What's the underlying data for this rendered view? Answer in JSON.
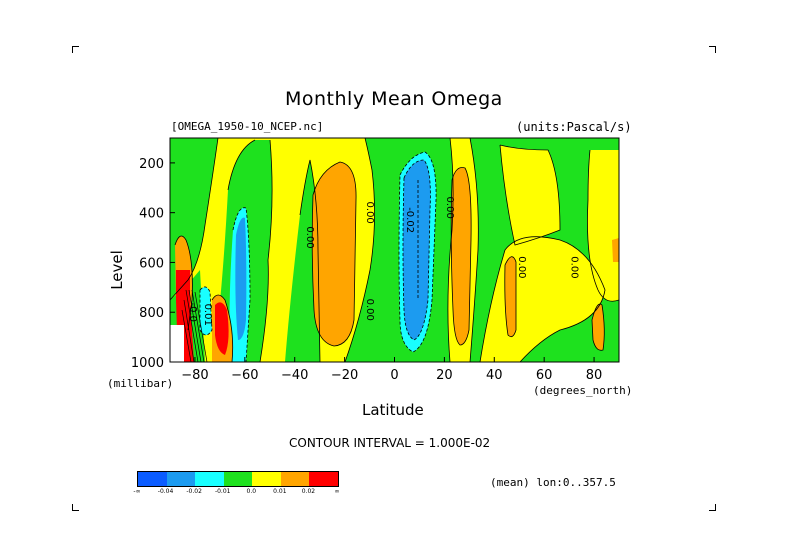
{
  "chart_data": {
    "type": "heatmap",
    "title": "Monthly Mean Omega",
    "source_label": "[OMEGA_1950-10_NCEP.nc]",
    "units_label": "(units:Pascal/s)",
    "xlabel": "Latitude",
    "xunit": "(degrees_north)",
    "ylabel": "Level",
    "yunit": "(millibar)",
    "xlim": [
      -90,
      90
    ],
    "ylim": [
      1000,
      100
    ],
    "xticks": [
      -80,
      -60,
      -40,
      -20,
      0,
      20,
      40,
      60,
      80
    ],
    "yticks": [
      1000,
      800,
      600,
      400,
      200
    ],
    "contour_interval": "CONTOUR INTERVAL = 1.000E-02",
    "mean_note": "(mean) lon:0..357.5",
    "contour_labels": [
      {
        "text": "0.00",
        "lat": -35,
        "lev": 500
      },
      {
        "text": "0.00",
        "lat": -11,
        "lev": 400
      },
      {
        "text": "0.00",
        "lat": -11,
        "lev": 790
      },
      {
        "text": "-0.02",
        "lat": 5,
        "lev": 430
      },
      {
        "text": "0.00",
        "lat": 21,
        "lev": 380
      },
      {
        "text": "0.00",
        "lat": 50,
        "lev": 620
      },
      {
        "text": "0.00",
        "lat": 71,
        "lev": 620
      },
      {
        "text": "0.01",
        "lat": -76,
        "lev": 810
      },
      {
        "text": "-0.0",
        "lat": -82,
        "lev": 800
      }
    ],
    "levels": [
      -0.05,
      -0.04,
      -0.02,
      -0.01,
      0.0,
      0.01,
      0.02,
      0.05
    ],
    "colorbar": {
      "colors": [
        "#0b5cff",
        "#1c9bf0",
        "#19ffff",
        "#1ee11e",
        "#ffff00",
        "#ffa500",
        "#ff0000"
      ],
      "labels": [
        "-∞",
        "-0.04",
        "-0.02",
        "-0.01",
        "0.0",
        "0.01",
        "0.02",
        "∞"
      ]
    }
  }
}
